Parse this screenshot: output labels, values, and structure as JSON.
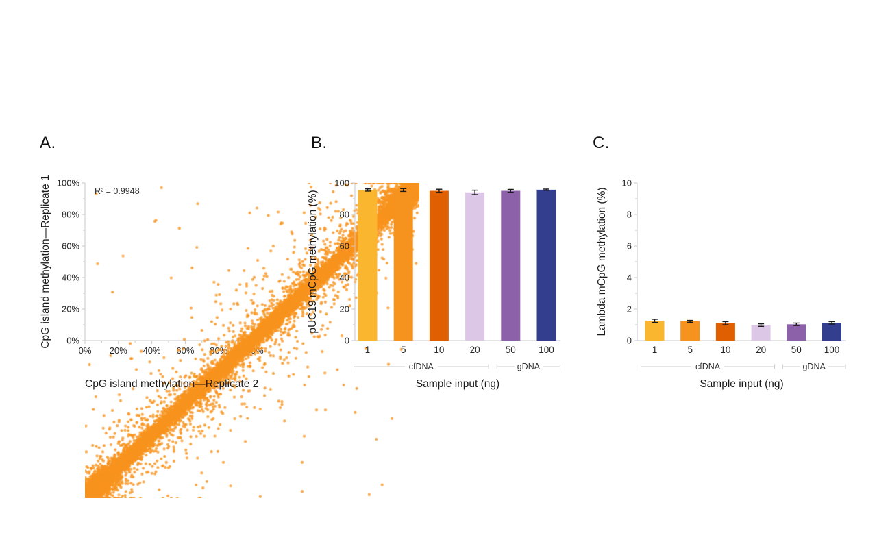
{
  "figure": {
    "background": "#ffffff"
  },
  "style": {
    "axis_color": "#C8C8C8",
    "tick_label_color": "#262626",
    "axis_label_color": "#1A1A1A",
    "error_bar_color": "#1A1A1A",
    "bracket_color": "#C8C8C8",
    "bracket_label_color": "#333333",
    "scatter_point_color": "#F7941E"
  },
  "chart_data": [
    {
      "type": "scatter",
      "panel_letter": "A.",
      "annotation": "R² = 0.9948",
      "r_squared": 0.9948,
      "xlabel": "CpG island methylation—Replicate 2",
      "ylabel": "CpG island methylation—Replicate 1",
      "xlim": [
        0,
        100
      ],
      "ylim": [
        0,
        100
      ],
      "x_major_ticks": [
        0,
        20,
        40,
        60,
        80,
        100
      ],
      "y_major_ticks": [
        0,
        20,
        40,
        60,
        80,
        100
      ],
      "minor_tick_step": 10,
      "tick_suffix": "%",
      "point_color": "#F7941E",
      "n_points_approx": 18000,
      "distribution": "Dense diagonal band y ≈ x from (0%,0%) to (100%,100%); heavy clusters at both extremes (0–8% and 88–100%); sparse off-diagonal outliers",
      "grid": false,
      "legend": "none"
    },
    {
      "type": "bar",
      "panel_letter": "B.",
      "xlabel": "Sample input (ng)",
      "ylabel": "pUC19 mCpG methylation (%)",
      "categories": [
        "1",
        "5",
        "10",
        "20",
        "50",
        "100"
      ],
      "values": [
        95.5,
        95.5,
        95.0,
        94.0,
        95.0,
        95.7
      ],
      "errors": [
        0.7,
        0.9,
        1.0,
        1.4,
        0.9,
        0.4
      ],
      "bar_colors": [
        "#FBB62F",
        "#F6921E",
        "#E05F00",
        "#DCC8E6",
        "#8D61A9",
        "#333E8F"
      ],
      "ylim": [
        0,
        100
      ],
      "y_major_ticks": [
        0,
        20,
        40,
        60,
        80,
        100
      ],
      "minor_tick_step": 10,
      "tick_suffix": "",
      "groups": [
        {
          "label": "cfDNA",
          "from": 0,
          "to": 3
        },
        {
          "label": "gDNA",
          "from": 4,
          "to": 5
        }
      ],
      "grid": false,
      "legend": "none"
    },
    {
      "type": "bar",
      "panel_letter": "C.",
      "xlabel": "Sample input (ng)",
      "ylabel": "Lambda mCpG methylation (%)",
      "categories": [
        "1",
        "5",
        "10",
        "20",
        "50",
        "100"
      ],
      "values": [
        1.25,
        1.22,
        1.1,
        0.98,
        1.03,
        1.12
      ],
      "errors": [
        0.1,
        0.06,
        0.1,
        0.08,
        0.08,
        0.08
      ],
      "bar_colors": [
        "#FBB62F",
        "#F6921E",
        "#E05F00",
        "#DCC8E6",
        "#8D61A9",
        "#333E8F"
      ],
      "ylim": [
        0,
        10
      ],
      "y_major_ticks": [
        0,
        2,
        4,
        6,
        8,
        10
      ],
      "minor_tick_step": 1,
      "tick_suffix": "",
      "groups": [
        {
          "label": "cfDNA",
          "from": 0,
          "to": 3
        },
        {
          "label": "gDNA",
          "from": 4,
          "to": 5
        }
      ],
      "grid": false,
      "legend": "none"
    }
  ]
}
